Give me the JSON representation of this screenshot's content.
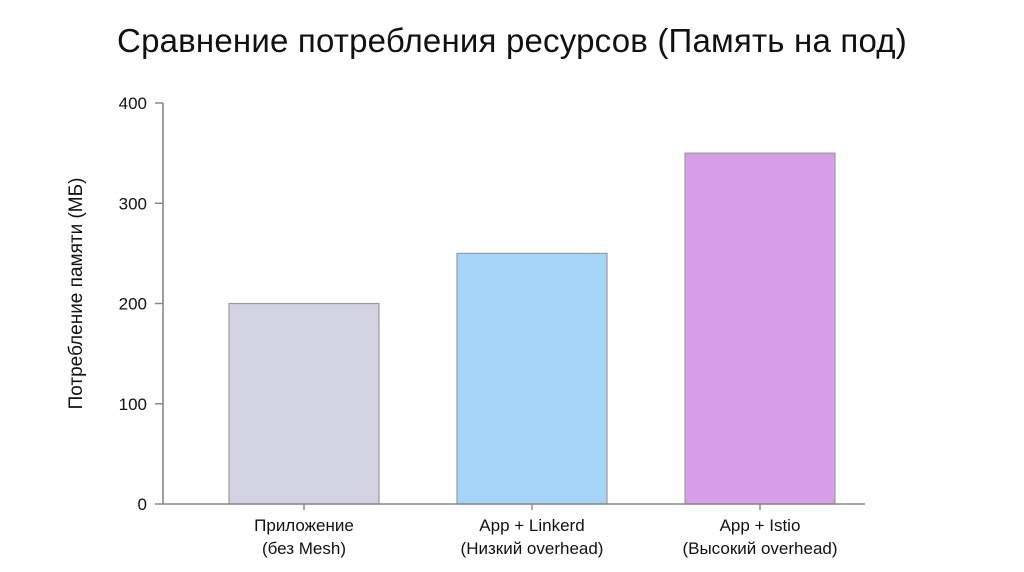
{
  "chart_data": {
    "type": "bar",
    "title": "Сравнение потребления ресурсов (Память на под)",
    "xlabel": "",
    "ylabel": "Потребление памяти (МБ)",
    "ylim": [
      0,
      400
    ],
    "yticks": [
      0,
      100,
      200,
      300,
      400
    ],
    "categories": [
      [
        "Приложение",
        "(без Mesh)"
      ],
      [
        "App + Linkerd",
        "(Низкий overhead)"
      ],
      [
        "App + Istio",
        "(Высокий overhead)"
      ]
    ],
    "values": [
      200,
      250,
      350
    ],
    "colors": [
      "#d2d2e0",
      "#a4d4f8",
      "#d99ee9"
    ],
    "grid": false,
    "legend": "none"
  }
}
